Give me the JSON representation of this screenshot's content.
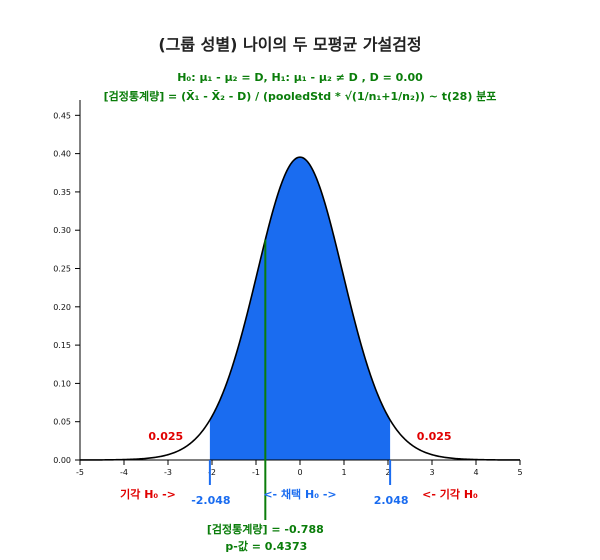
{
  "chart_data": {
    "type": "area",
    "title": "(그룹 성별) 나이의 두 모평균 가설검정",
    "hypothesis_line": "H₀: μ₁ - μ₂ = D, H₁: μ₁ - μ₂ ≠ D , D = 0.00",
    "statistic_line": "[검정통계량] = (X̄₁ - X̄₂ - D) / (pooledStd * √(1/n₁+1/n₂)) ~ t(28) 분포",
    "distribution": "t",
    "df": 28,
    "xlim": [
      -5,
      5
    ],
    "ylim": [
      0,
      0.47
    ],
    "x_ticks": [
      "-5",
      "-4",
      "-3",
      "-2",
      "-1",
      "0",
      "1",
      "2",
      "3",
      "4",
      "5"
    ],
    "y_ticks": [
      "0.00",
      "0.05",
      "0.10",
      "0.15",
      "0.20",
      "0.25",
      "0.30",
      "0.35",
      "0.40",
      "0.45"
    ],
    "critical_low": -2.048,
    "critical_high": 2.048,
    "critical_low_label": "-2.048",
    "critical_high_label": "2.048",
    "tail_area_left": "0.025",
    "tail_area_right": "0.025",
    "reject_left_label": "기각 H₀ ->",
    "accept_label": "<- 채택 H₀ ->",
    "reject_right_label": "<- 기각 H₀",
    "test_statistic": -0.788,
    "test_statistic_label": "[검정통계량] = -0.788",
    "p_value_label": "p-값 = 0.4373",
    "colors": {
      "accept_fill": "#1a6cf0",
      "curve": "#000000",
      "reject": "#e00000",
      "statistic": "#0a7d0a"
    }
  }
}
